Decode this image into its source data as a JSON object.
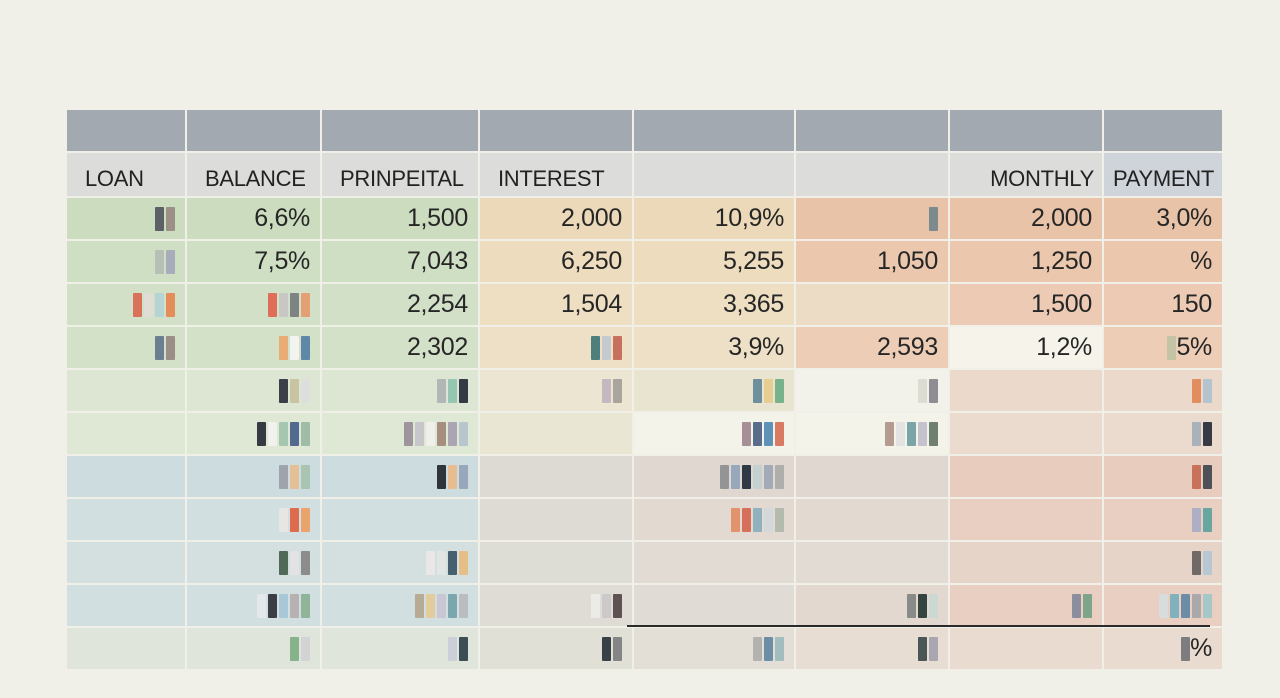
{
  "header": {
    "columns": [
      "LOAN",
      "BALANCE",
      "PRINPEITAL",
      "INTEREST",
      "",
      "",
      "MONTHLY",
      "PAYMENT"
    ]
  },
  "colors": {
    "page_bg": "#f1f0e8",
    "band": "#a3a9b0",
    "header_bg": "#dcdcda",
    "payment_header_bg": "#cfd4da",
    "green": "#cfdfc3",
    "beige": "#ecdcbf",
    "peach": "#e9c4a9",
    "blue": "#cddcdc",
    "rule": "#2a2a2a"
  },
  "rows": [
    {
      "bg": [
        "#cbdcbf",
        "#cbdcbf",
        "#cbdcbf",
        "#ecd9b9",
        "#ecd9b9",
        "#e9c3a7",
        "#e9c3a7",
        "#e9c3a7"
      ],
      "cells": [
        {
          "chips": [
            "#5d6066",
            "#9c8f85"
          ]
        },
        {
          "text": "6,6%"
        },
        {
          "text": "1,500"
        },
        {
          "text": "2,000"
        },
        {
          "text": "10,9%"
        },
        {
          "chips": [
            "#7b8a8c"
          ]
        },
        {
          "text": "2,000"
        },
        {
          "text": "3,0%"
        }
      ]
    },
    {
      "bg": [
        "#cfdfc4",
        "#cfdfc4",
        "#cfdfc4",
        "#eddcbd",
        "#eddcbd",
        "#ebc7ad",
        "#ebc7ad",
        "#ebc7ad"
      ],
      "cells": [
        {
          "chips": [
            "#b8bfb6",
            "#a8acbb"
          ]
        },
        {
          "text": "7,5%"
        },
        {
          "text": "7,043"
        },
        {
          "text": "6,250"
        },
        {
          "text": "5,255"
        },
        {
          "text": "1,050"
        },
        {
          "text": "1,250"
        },
        {
          "text": "%"
        }
      ]
    },
    {
      "bg": [
        "#d2e0c7",
        "#d2e0c7",
        "#d2e0c7",
        "#eedfc3",
        "#eedfc3",
        "#ecdcc5",
        "#eccab3",
        "#eccab3"
      ],
      "cells": [
        {
          "chips": [
            "#d9725a",
            "#e0ddd6",
            "#b6d4d4",
            "#e38d5a"
          ]
        },
        {
          "chips": [
            "#de6e57",
            "#c8c7c4",
            "#7e8484",
            "#e4a074"
          ]
        },
        {
          "text": "2,254"
        },
        {
          "text": "1,504"
        },
        {
          "text": "3,365"
        },
        {
          "text": ""
        },
        {
          "text": "1,500"
        },
        {
          "text": "150"
        }
      ]
    },
    {
      "bg": [
        "#d4e1c9",
        "#d4e1c9",
        "#d4e1c9",
        "#eee0c6",
        "#eee0c6",
        "#edcdb6",
        "#f5f3ea",
        "#edcdb6"
      ],
      "cells": [
        {
          "chips": [
            "#6c7f90",
            "#9b8e86"
          ]
        },
        {
          "chips": [
            "#e9ac74",
            "#f3f3ef",
            "#5f87a8"
          ]
        },
        {
          "text": "2,302"
        },
        {
          "chips": [
            "#4f7f7c",
            "#c5c9d0",
            "#c8705e"
          ]
        },
        {
          "text": "3,9%"
        },
        {
          "text": "2,593"
        },
        {
          "text": "1,2%"
        },
        {
          "chips": [
            "#c3c3a5"
          ],
          "text": "5%"
        }
      ]
    },
    {
      "bg": [
        "#dce6d3",
        "#dce6d3",
        "#dce6d3",
        "#ebe5d2",
        "#e9e4cf",
        "#f3f2ea",
        "#ebd9cc",
        "#ebd9cc"
      ],
      "cells": [
        {},
        {
          "chips": [
            "#3b3f47",
            "#c8c4a1",
            "#dedfdc"
          ]
        },
        {
          "chips": [
            "#b3b6b6",
            "#95c6b1",
            "#343a43"
          ]
        },
        {
          "chips": [
            "#c6b8c0",
            "#a9a49c"
          ]
        },
        {
          "chips": [
            "#6e8f9c",
            "#e8cd93",
            "#77b28d"
          ]
        },
        {
          "chips": [
            "#dcdcd2",
            "#8f8c94"
          ]
        },
        {},
        {
          "chips": [
            "#e28d5f",
            "#b4c4cf"
          ]
        }
      ]
    },
    {
      "bg": [
        "#dfe7d5",
        "#dfe7d5",
        "#dfe7d5",
        "#e9e6d4",
        "#f4f3ea",
        "#f4f3ea",
        "#ebdace",
        "#ebdace"
      ],
      "cells": [
        {},
        {
          "chips": [
            "#363a42",
            "#f1f1ed",
            "#a5c7b0",
            "#526a90",
            "#9fbca9"
          ]
        },
        {
          "chips": [
            "#9e949c",
            "#c7c6cb",
            "#f0efec",
            "#a68f7e",
            "#a9a6b1",
            "#b7c5cc"
          ]
        },
        {},
        {
          "chips": [
            "#a68f97",
            "#596c89",
            "#5e93b7",
            "#d87b62"
          ]
        },
        {
          "chips": [
            "#b49a8f",
            "#e2e3e2",
            "#7aa4a8",
            "#c3c2cd",
            "#6f8071"
          ]
        },
        {},
        {
          "chips": [
            "#a9b1bb",
            "#373a42"
          ]
        }
      ]
    },
    {
      "bg": [
        "#cddcde",
        "#cddcde",
        "#cddcde",
        "#dcdad3",
        "#e0d8d0",
        "#e0d8d0",
        "#e8ccbe",
        "#e8ccbe"
      ],
      "cells": [
        {},
        {
          "chips": [
            "#9ea3ac",
            "#e4c096",
            "#a9c4b1"
          ]
        },
        {
          "chips": [
            "#2f353b",
            "#e8bc91",
            "#97a8bd"
          ]
        },
        {},
        {
          "chips": [
            "#929496",
            "#98a8bc",
            "#2f3845",
            "#c4d1ce",
            "#a2abb7",
            "#aeaeaa"
          ]
        },
        {},
        {},
        {
          "chips": [
            "#c9725b",
            "#4e5258"
          ]
        }
      ]
    },
    {
      "bg": [
        "#d1dfe0",
        "#d1dfe0",
        "#d1dfe0",
        "#dddbd3",
        "#e2d9d0",
        "#e2d9d0",
        "#e8cfc1",
        "#e8cfc1"
      ],
      "cells": [
        {},
        {
          "chips": [
            "#e8e6e2",
            "#dc6c4c",
            "#e9a36d"
          ]
        },
        {},
        {},
        {
          "chips": [
            "#e3936b",
            "#d6705a",
            "#8fb2be",
            "#d5d8db",
            "#b2bbae"
          ]
        },
        {},
        {},
        {
          "chips": [
            "#aeaec4",
            "#6aa6a0"
          ]
        }
      ]
    },
    {
      "bg": [
        "#d4e0e0",
        "#d4e0e0",
        "#d4e0e0",
        "#ddddd5",
        "#e2dbd3",
        "#e2dbd3",
        "#e7d4c8",
        "#e7d4c8"
      ],
      "cells": [
        {},
        {
          "chips": [
            "#4f6b58",
            "#e2e3e2",
            "#8c8c8c"
          ]
        },
        {
          "chips": [
            "#e9e8e7",
            "#e1e5e3",
            "#466070",
            "#e6bf88"
          ]
        },
        {},
        {},
        {},
        {},
        {
          "chips": [
            "#6f6a66",
            "#b8c8d2"
          ]
        }
      ]
    },
    {
      "bg": [
        "#d1dfe1",
        "#d1dfe1",
        "#d1dfe1",
        "#dedcd5",
        "#e0dcd5",
        "#e3d8cf",
        "#e9cfc1",
        "#e9cfc1"
      ],
      "cells": [
        {},
        {
          "chips": [
            "#e4e8ea",
            "#3b3e45",
            "#a8c8d8",
            "#b7b2b1",
            "#8fb497"
          ]
        },
        {
          "chips": [
            "#b8ab96",
            "#e3cc9c",
            "#c9c7d4",
            "#7aa7ad",
            "#b9bdc0"
          ]
        },
        {
          "chips": [
            "#ebebe8",
            "#cbc9ca",
            "#5e5252"
          ]
        },
        {},
        {
          "chips": [
            "#888b88",
            "#344541",
            "#cbd9d5"
          ]
        },
        {
          "chips": [
            "#8d8e9d",
            "#7ea589"
          ]
        },
        {
          "chips": [
            "#d9dcdc",
            "#80b1bd",
            "#6d8da6",
            "#aba8ab",
            "#a5c7c7"
          ]
        }
      ]
    },
    {
      "bg": [
        "#e0e5dc",
        "#e0e5dc",
        "#e0e5dc",
        "#e0e0d7",
        "#e3dfd7",
        "#e7ddd3",
        "#e9dbd0",
        "#e9dbd0"
      ],
      "cells": [
        {},
        {
          "chips": [
            "#86b38b",
            "#d3d3d3"
          ]
        },
        {
          "chips": [
            "#cccfd8",
            "#3b4e55"
          ]
        },
        {
          "chips": [
            "#384048",
            "#858585"
          ]
        },
        {
          "chips": [
            "#b3b2ae",
            "#6b8ea6",
            "#a3bcbe"
          ]
        },
        {
          "chips": [
            "#4a5556",
            "#a8a7b1"
          ]
        },
        {},
        {
          "chips": [
            "#7d7d7f"
          ],
          "text": "%"
        }
      ]
    }
  ]
}
